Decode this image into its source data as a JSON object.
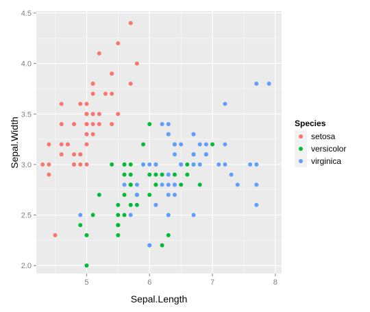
{
  "chart_data": {
    "type": "scatter",
    "title": "",
    "xlabel": "Sepal.Length",
    "ylabel": "Sepal.Width",
    "xlim": [
      4.2,
      8.1
    ],
    "ylim": [
      1.92,
      4.52
    ],
    "x_ticks": [
      5,
      6,
      7,
      8
    ],
    "y_ticks": [
      2.0,
      2.5,
      3.0,
      3.5,
      4.0,
      4.5
    ],
    "x_tick_labels": [
      "5",
      "6",
      "7",
      "8"
    ],
    "y_tick_labels": [
      "2.0",
      "2.5",
      "3.0",
      "3.5",
      "4.0",
      "4.5"
    ],
    "grid": true,
    "legend_position": "right",
    "legend_title": "Species",
    "panel_background": "#ebebeb",
    "grid_color": "#ffffff",
    "series": [
      {
        "name": "setosa",
        "color": "#f8766d",
        "points": [
          [
            5.1,
            3.5
          ],
          [
            4.9,
            3.0
          ],
          [
            4.7,
            3.2
          ],
          [
            4.6,
            3.1
          ],
          [
            5.0,
            3.6
          ],
          [
            5.4,
            3.9
          ],
          [
            4.6,
            3.4
          ],
          [
            5.0,
            3.4
          ],
          [
            4.4,
            2.9
          ],
          [
            4.9,
            3.1
          ],
          [
            5.4,
            3.7
          ],
          [
            4.8,
            3.4
          ],
          [
            4.8,
            3.0
          ],
          [
            4.3,
            3.0
          ],
          [
            5.8,
            4.0
          ],
          [
            5.7,
            4.4
          ],
          [
            5.4,
            3.9
          ],
          [
            5.1,
            3.5
          ],
          [
            5.7,
            3.8
          ],
          [
            5.1,
            3.8
          ],
          [
            5.4,
            3.4
          ],
          [
            5.1,
            3.7
          ],
          [
            4.6,
            3.6
          ],
          [
            5.1,
            3.3
          ],
          [
            4.8,
            3.4
          ],
          [
            5.0,
            3.0
          ],
          [
            5.0,
            3.4
          ],
          [
            5.2,
            3.5
          ],
          [
            5.2,
            3.4
          ],
          [
            4.7,
            3.2
          ],
          [
            4.8,
            3.1
          ],
          [
            5.4,
            3.4
          ],
          [
            5.2,
            4.1
          ],
          [
            5.5,
            4.2
          ],
          [
            4.9,
            3.1
          ],
          [
            5.0,
            3.2
          ],
          [
            5.5,
            3.5
          ],
          [
            4.9,
            3.6
          ],
          [
            4.4,
            3.0
          ],
          [
            5.1,
            3.4
          ],
          [
            5.0,
            3.5
          ],
          [
            4.5,
            2.3
          ],
          [
            4.4,
            3.2
          ],
          [
            5.0,
            3.5
          ],
          [
            5.1,
            3.8
          ],
          [
            4.8,
            3.0
          ],
          [
            5.1,
            3.8
          ],
          [
            4.6,
            3.2
          ],
          [
            5.3,
            3.7
          ],
          [
            5.0,
            3.3
          ]
        ]
      },
      {
        "name": "versicolor",
        "color": "#00ba38",
        "points": [
          [
            7.0,
            3.2
          ],
          [
            6.4,
            3.2
          ],
          [
            6.9,
            3.1
          ],
          [
            5.5,
            2.3
          ],
          [
            6.5,
            2.8
          ],
          [
            5.7,
            2.8
          ],
          [
            6.3,
            3.3
          ],
          [
            4.9,
            2.4
          ],
          [
            6.6,
            2.9
          ],
          [
            5.2,
            2.7
          ],
          [
            5.0,
            2.0
          ],
          [
            5.9,
            3.0
          ],
          [
            6.0,
            2.2
          ],
          [
            6.1,
            2.9
          ],
          [
            5.6,
            2.9
          ],
          [
            6.7,
            3.1
          ],
          [
            5.6,
            3.0
          ],
          [
            5.8,
            2.7
          ],
          [
            6.2,
            2.2
          ],
          [
            5.6,
            2.5
          ],
          [
            5.9,
            3.2
          ],
          [
            6.1,
            2.8
          ],
          [
            6.3,
            2.5
          ],
          [
            6.1,
            2.8
          ],
          [
            6.4,
            2.9
          ],
          [
            6.6,
            3.0
          ],
          [
            6.8,
            2.8
          ],
          [
            6.7,
            3.0
          ],
          [
            6.0,
            2.9
          ],
          [
            5.7,
            2.6
          ],
          [
            5.5,
            2.4
          ],
          [
            5.5,
            2.4
          ],
          [
            5.8,
            2.7
          ],
          [
            6.0,
            2.7
          ],
          [
            5.4,
            3.0
          ],
          [
            6.0,
            3.4
          ],
          [
            6.7,
            3.1
          ],
          [
            6.3,
            2.3
          ],
          [
            5.6,
            3.0
          ],
          [
            5.5,
            2.5
          ],
          [
            5.5,
            2.6
          ],
          [
            6.1,
            3.0
          ],
          [
            5.8,
            2.6
          ],
          [
            5.0,
            2.3
          ],
          [
            5.6,
            2.7
          ],
          [
            5.7,
            3.0
          ],
          [
            5.7,
            2.9
          ],
          [
            6.2,
            2.9
          ],
          [
            5.1,
            2.5
          ],
          [
            5.7,
            2.8
          ]
        ]
      },
      {
        "name": "virginica",
        "color": "#619cff",
        "points": [
          [
            6.3,
            3.3
          ],
          [
            5.8,
            2.7
          ],
          [
            7.1,
            3.0
          ],
          [
            6.3,
            2.9
          ],
          [
            6.5,
            3.0
          ],
          [
            7.6,
            3.0
          ],
          [
            4.9,
            2.5
          ],
          [
            7.3,
            2.9
          ],
          [
            6.7,
            2.5
          ],
          [
            7.2,
            3.6
          ],
          [
            6.5,
            3.2
          ],
          [
            6.4,
            2.7
          ],
          [
            6.8,
            3.0
          ],
          [
            5.7,
            2.5
          ],
          [
            5.8,
            2.8
          ],
          [
            6.4,
            3.2
          ],
          [
            6.5,
            3.0
          ],
          [
            7.7,
            3.8
          ],
          [
            7.7,
            2.6
          ],
          [
            6.0,
            2.2
          ],
          [
            6.9,
            3.2
          ],
          [
            5.6,
            2.8
          ],
          [
            7.7,
            2.8
          ],
          [
            6.3,
            2.7
          ],
          [
            6.7,
            3.3
          ],
          [
            7.2,
            3.2
          ],
          [
            6.2,
            2.8
          ],
          [
            6.1,
            3.0
          ],
          [
            6.4,
            2.8
          ],
          [
            7.2,
            3.0
          ],
          [
            7.4,
            2.8
          ],
          [
            7.9,
            3.8
          ],
          [
            6.4,
            2.8
          ],
          [
            6.3,
            2.8
          ],
          [
            6.1,
            2.6
          ],
          [
            7.7,
            3.0
          ],
          [
            6.3,
            3.4
          ],
          [
            6.4,
            3.1
          ],
          [
            6.0,
            3.0
          ],
          [
            6.9,
            3.1
          ],
          [
            6.7,
            3.1
          ],
          [
            6.9,
            3.1
          ],
          [
            5.8,
            2.7
          ],
          [
            6.8,
            3.2
          ],
          [
            6.7,
            3.3
          ],
          [
            6.7,
            3.0
          ],
          [
            6.3,
            2.5
          ],
          [
            6.5,
            3.0
          ],
          [
            6.2,
            3.4
          ],
          [
            5.9,
            3.0
          ]
        ]
      }
    ]
  }
}
